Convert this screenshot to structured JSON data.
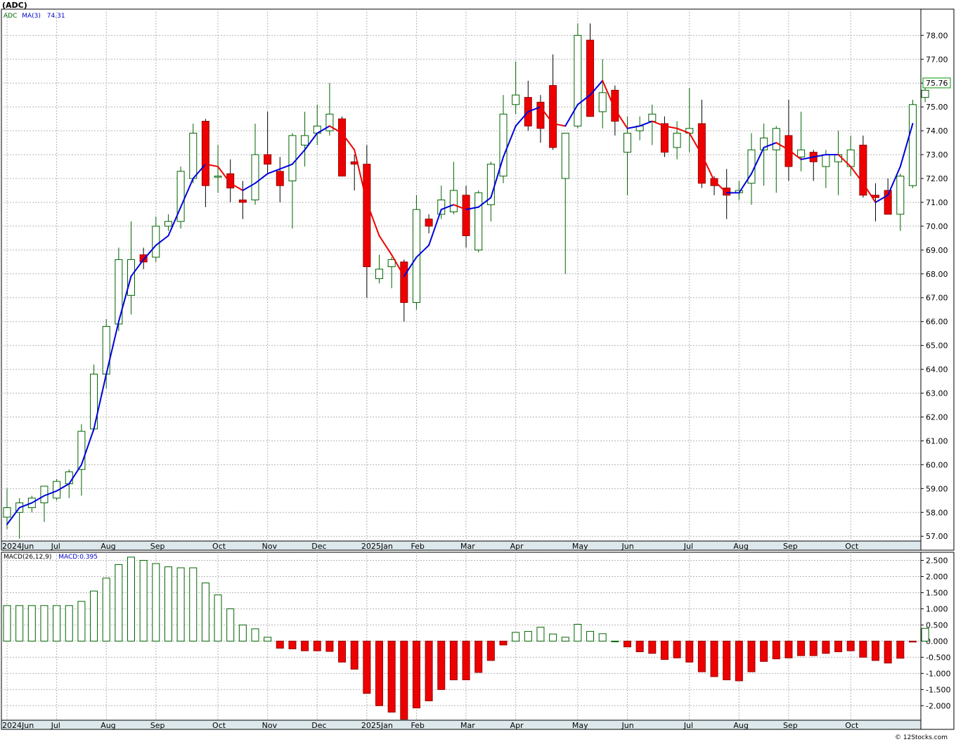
{
  "chart_data": [
    {
      "type": "candlestick",
      "title": "(ADC)",
      "ticker": "ADC",
      "ma_label": "MA(3)",
      "ma_value": "74.31",
      "last_price_label": "75.76",
      "ylim": [
        56.8,
        79.1
      ],
      "ytick_labels": [
        "57.00",
        "58.00",
        "59.00",
        "60.00",
        "61.00",
        "62.00",
        "63.00",
        "64.00",
        "65.00",
        "66.00",
        "67.00",
        "68.00",
        "69.00",
        "70.00",
        "71.00",
        "72.00",
        "73.00",
        "74.00",
        "75.00",
        "76.00",
        "77.00",
        "78.00"
      ],
      "xtick_labels": [
        {
          "week": 0,
          "label": "2024Jun"
        },
        {
          "week": 4,
          "label": "Jul"
        },
        {
          "week": 8,
          "label": "Aug"
        },
        {
          "week": 12,
          "label": "Sep"
        },
        {
          "week": 17,
          "label": "Oct"
        },
        {
          "week": 21,
          "label": "Nov"
        },
        {
          "week": 25,
          "label": "Dec"
        },
        {
          "week": 29,
          "label": "2025Jan"
        },
        {
          "week": 33,
          "label": "Feb"
        },
        {
          "week": 37,
          "label": "Mar"
        },
        {
          "week": 41,
          "label": "Apr"
        },
        {
          "week": 46,
          "label": "May"
        },
        {
          "week": 50,
          "label": "Jun"
        },
        {
          "week": 55,
          "label": "Jul"
        },
        {
          "week": 59,
          "label": "Aug"
        },
        {
          "week": 63,
          "label": "Sep"
        },
        {
          "week": 68,
          "label": "Oct"
        }
      ],
      "candles": [
        {
          "o": 57.8,
          "h": 59.0,
          "l": 57.3,
          "c": 58.2
        },
        {
          "o": 58.0,
          "h": 58.6,
          "l": 56.9,
          "c": 58.4
        },
        {
          "o": 58.2,
          "h": 58.7,
          "l": 58.0,
          "c": 58.6
        },
        {
          "o": 58.4,
          "h": 58.9,
          "l": 57.6,
          "c": 59.1
        },
        {
          "o": 58.6,
          "h": 59.4,
          "l": 58.5,
          "c": 59.3
        },
        {
          "o": 59.2,
          "h": 59.8,
          "l": 58.6,
          "c": 59.7
        },
        {
          "o": 59.8,
          "h": 61.7,
          "l": 58.7,
          "c": 61.4
        },
        {
          "o": 61.5,
          "h": 64.2,
          "l": 61.4,
          "c": 63.8
        },
        {
          "o": 63.8,
          "h": 66.1,
          "l": 63.2,
          "c": 65.8
        },
        {
          "o": 65.9,
          "h": 69.1,
          "l": 65.6,
          "c": 68.6
        },
        {
          "o": 67.1,
          "h": 70.2,
          "l": 66.3,
          "c": 68.6
        },
        {
          "o": 68.8,
          "h": 69.1,
          "l": 68.2,
          "c": 68.5
        },
        {
          "o": 68.7,
          "h": 70.4,
          "l": 68.5,
          "c": 70.0
        },
        {
          "o": 70.0,
          "h": 70.5,
          "l": 69.8,
          "c": 70.2
        },
        {
          "o": 70.2,
          "h": 72.5,
          "l": 69.9,
          "c": 72.3
        },
        {
          "o": 72.0,
          "h": 74.3,
          "l": 71.8,
          "c": 73.9
        },
        {
          "o": 74.4,
          "h": 74.5,
          "l": 70.8,
          "c": 71.7
        },
        {
          "o": 72.1,
          "h": 73.4,
          "l": 71.4,
          "c": 72.1
        },
        {
          "o": 72.2,
          "h": 72.8,
          "l": 71.0,
          "c": 71.6
        },
        {
          "o": 71.1,
          "h": 71.9,
          "l": 70.3,
          "c": 71.0
        },
        {
          "o": 71.1,
          "h": 74.3,
          "l": 70.9,
          "c": 73.0
        },
        {
          "o": 73.0,
          "h": 74.8,
          "l": 72.2,
          "c": 72.6
        },
        {
          "o": 72.3,
          "h": 72.9,
          "l": 71.0,
          "c": 71.7
        },
        {
          "o": 71.9,
          "h": 73.9,
          "l": 69.9,
          "c": 73.8
        },
        {
          "o": 73.4,
          "h": 74.8,
          "l": 72.5,
          "c": 73.8
        },
        {
          "o": 73.9,
          "h": 75.1,
          "l": 73.4,
          "c": 74.2
        },
        {
          "o": 74.0,
          "h": 76.0,
          "l": 73.8,
          "c": 74.7
        },
        {
          "o": 74.5,
          "h": 74.6,
          "l": 72.3,
          "c": 72.1
        },
        {
          "o": 72.7,
          "h": 73.0,
          "l": 71.5,
          "c": 72.6
        },
        {
          "o": 72.6,
          "h": 73.4,
          "l": 67.0,
          "c": 68.3
        },
        {
          "o": 67.8,
          "h": 68.8,
          "l": 67.6,
          "c": 68.2
        },
        {
          "o": 68.3,
          "h": 68.7,
          "l": 67.4,
          "c": 68.6
        },
        {
          "o": 68.5,
          "h": 68.6,
          "l": 66.0,
          "c": 66.8
        },
        {
          "o": 66.8,
          "h": 71.3,
          "l": 66.5,
          "c": 70.7
        },
        {
          "o": 70.3,
          "h": 70.5,
          "l": 69.7,
          "c": 70.0
        },
        {
          "o": 70.5,
          "h": 71.7,
          "l": 70.3,
          "c": 71.1
        },
        {
          "o": 70.6,
          "h": 72.7,
          "l": 70.5,
          "c": 71.5
        },
        {
          "o": 71.3,
          "h": 71.7,
          "l": 69.1,
          "c": 69.6
        },
        {
          "o": 69.0,
          "h": 71.5,
          "l": 68.9,
          "c": 71.4
        },
        {
          "o": 70.9,
          "h": 72.7,
          "l": 70.2,
          "c": 72.6
        },
        {
          "o": 72.1,
          "h": 75.5,
          "l": 71.8,
          "c": 74.7
        },
        {
          "o": 75.1,
          "h": 76.9,
          "l": 74.7,
          "c": 75.5
        },
        {
          "o": 75.4,
          "h": 76.1,
          "l": 74.0,
          "c": 74.2
        },
        {
          "o": 75.2,
          "h": 75.5,
          "l": 73.5,
          "c": 74.1
        },
        {
          "o": 75.9,
          "h": 77.2,
          "l": 73.2,
          "c": 73.3
        },
        {
          "o": 72.0,
          "h": 73.9,
          "l": 68.0,
          "c": 73.9
        },
        {
          "o": 74.2,
          "h": 78.5,
          "l": 74.1,
          "c": 78.0
        },
        {
          "o": 77.8,
          "h": 78.5,
          "l": 74.6,
          "c": 74.6
        },
        {
          "o": 74.8,
          "h": 77.0,
          "l": 74.1,
          "c": 75.6
        },
        {
          "o": 75.7,
          "h": 75.9,
          "l": 73.8,
          "c": 74.4
        },
        {
          "o": 73.1,
          "h": 74.6,
          "l": 71.3,
          "c": 73.9
        },
        {
          "o": 74.0,
          "h": 74.6,
          "l": 73.6,
          "c": 74.2
        },
        {
          "o": 74.4,
          "h": 75.1,
          "l": 73.4,
          "c": 74.7
        },
        {
          "o": 74.3,
          "h": 74.6,
          "l": 72.9,
          "c": 73.1
        },
        {
          "o": 73.3,
          "h": 74.4,
          "l": 72.8,
          "c": 73.9
        },
        {
          "o": 73.9,
          "h": 75.8,
          "l": 73.1,
          "c": 74.1
        },
        {
          "o": 74.3,
          "h": 75.3,
          "l": 71.6,
          "c": 71.8
        },
        {
          "o": 72.0,
          "h": 72.1,
          "l": 71.3,
          "c": 71.7
        },
        {
          "o": 71.6,
          "h": 72.4,
          "l": 70.3,
          "c": 71.3
        },
        {
          "o": 71.4,
          "h": 71.9,
          "l": 71.1,
          "c": 71.5
        },
        {
          "o": 71.8,
          "h": 73.9,
          "l": 70.9,
          "c": 73.2
        },
        {
          "o": 73.2,
          "h": 74.3,
          "l": 71.7,
          "c": 73.7
        },
        {
          "o": 73.2,
          "h": 74.2,
          "l": 71.4,
          "c": 74.1
        },
        {
          "o": 73.8,
          "h": 75.3,
          "l": 71.9,
          "c": 72.5
        },
        {
          "o": 72.9,
          "h": 74.8,
          "l": 72.3,
          "c": 73.2
        },
        {
          "o": 73.1,
          "h": 73.2,
          "l": 71.9,
          "c": 72.7
        },
        {
          "o": 72.5,
          "h": 73.2,
          "l": 71.6,
          "c": 73.0
        },
        {
          "o": 72.7,
          "h": 74.0,
          "l": 71.3,
          "c": 73.0
        },
        {
          "o": 72.5,
          "h": 73.8,
          "l": 72.1,
          "c": 73.2
        },
        {
          "o": 73.4,
          "h": 73.8,
          "l": 71.2,
          "c": 71.3
        },
        {
          "o": 71.3,
          "h": 71.8,
          "l": 70.2,
          "c": 71.2
        },
        {
          "o": 71.5,
          "h": 72.0,
          "l": 70.5,
          "c": 70.5
        },
        {
          "o": 70.5,
          "h": 72.2,
          "l": 69.8,
          "c": 72.1
        },
        {
          "o": 71.7,
          "h": 75.3,
          "l": 71.6,
          "c": 75.1
        },
        {
          "o": 75.4,
          "h": 76.0,
          "l": 75.2,
          "c": 75.7
        }
      ],
      "ma": [
        {
          "week": 0,
          "v": 57.5
        },
        {
          "week": 1,
          "v": 58.2
        },
        {
          "week": 2,
          "v": 58.4
        },
        {
          "week": 3,
          "v": 58.7
        },
        {
          "week": 4,
          "v": 58.9
        },
        {
          "week": 5,
          "v": 59.2
        },
        {
          "week": 6,
          "v": 60.0
        },
        {
          "week": 7,
          "v": 61.5
        },
        {
          "week": 8,
          "v": 63.8
        },
        {
          "week": 9,
          "v": 66.0
        },
        {
          "week": 10,
          "v": 67.9
        },
        {
          "week": 11,
          "v": 68.6
        },
        {
          "week": 12,
          "v": 69.2
        },
        {
          "week": 13,
          "v": 69.6
        },
        {
          "week": 14,
          "v": 70.8
        },
        {
          "week": 15,
          "v": 72.0
        },
        {
          "week": 16,
          "v": 72.6
        },
        {
          "week": 17,
          "v": 72.5
        },
        {
          "week": 18,
          "v": 71.8
        },
        {
          "week": 19,
          "v": 71.5
        },
        {
          "week": 20,
          "v": 71.8
        },
        {
          "week": 21,
          "v": 72.2
        },
        {
          "week": 22,
          "v": 72.4
        },
        {
          "week": 23,
          "v": 72.6
        },
        {
          "week": 24,
          "v": 73.2
        },
        {
          "week": 25,
          "v": 73.9
        },
        {
          "week": 26,
          "v": 74.2
        },
        {
          "week": 27,
          "v": 73.9
        },
        {
          "week": 28,
          "v": 73.2
        },
        {
          "week": 29,
          "v": 71.0
        },
        {
          "week": 30,
          "v": 69.6
        },
        {
          "week": 31,
          "v": 68.8
        },
        {
          "week": 32,
          "v": 67.9
        },
        {
          "week": 33,
          "v": 68.7
        },
        {
          "week": 34,
          "v": 69.2
        },
        {
          "week": 35,
          "v": 70.7
        },
        {
          "week": 36,
          "v": 70.9
        },
        {
          "week": 37,
          "v": 70.7
        },
        {
          "week": 38,
          "v": 70.8
        },
        {
          "week": 39,
          "v": 71.2
        },
        {
          "week": 40,
          "v": 72.9
        },
        {
          "week": 41,
          "v": 74.2
        },
        {
          "week": 42,
          "v": 74.8
        },
        {
          "week": 43,
          "v": 75.0
        },
        {
          "week": 44,
          "v": 74.3
        },
        {
          "week": 45,
          "v": 74.2
        },
        {
          "week": 46,
          "v": 75.1
        },
        {
          "week": 47,
          "v": 75.5
        },
        {
          "week": 48,
          "v": 76.1
        },
        {
          "week": 49,
          "v": 74.9
        },
        {
          "week": 50,
          "v": 74.1
        },
        {
          "week": 51,
          "v": 74.2
        },
        {
          "week": 52,
          "v": 74.4
        },
        {
          "week": 53,
          "v": 74.2
        },
        {
          "week": 54,
          "v": 74.1
        },
        {
          "week": 55,
          "v": 73.9
        },
        {
          "week": 56,
          "v": 73.0
        },
        {
          "week": 57,
          "v": 71.9
        },
        {
          "week": 58,
          "v": 71.4
        },
        {
          "week": 59,
          "v": 71.4
        },
        {
          "week": 60,
          "v": 72.2
        },
        {
          "week": 61,
          "v": 73.3
        },
        {
          "week": 62,
          "v": 73.5
        },
        {
          "week": 63,
          "v": 73.2
        },
        {
          "week": 64,
          "v": 72.8
        },
        {
          "week": 65,
          "v": 72.9
        },
        {
          "week": 66,
          "v": 73.0
        },
        {
          "week": 67,
          "v": 73.0
        },
        {
          "week": 68,
          "v": 72.5
        },
        {
          "week": 69,
          "v": 71.8
        },
        {
          "week": 70,
          "v": 71.0
        },
        {
          "week": 71,
          "v": 71.3
        },
        {
          "week": 72,
          "v": 72.5
        },
        {
          "week": 73,
          "v": 74.3
        }
      ]
    },
    {
      "type": "bar",
      "label": "MACD(26,12,9)",
      "value_label": "MACD:0.395",
      "ylim": [
        -2.45,
        2.75
      ],
      "ytick_labels": [
        "2.500",
        "2.000",
        "1.500",
        "1.000",
        "0.500",
        "0.000",
        "-0.500",
        "-1.000",
        "-1.500",
        "-2.000"
      ],
      "values": [
        1.1,
        1.1,
        1.1,
        1.1,
        1.1,
        1.1,
        1.23,
        1.55,
        1.95,
        2.37,
        2.6,
        2.5,
        2.4,
        2.3,
        2.27,
        2.27,
        1.8,
        1.43,
        1.0,
        0.5,
        0.38,
        0.12,
        -0.22,
        -0.24,
        -0.3,
        -0.3,
        -0.32,
        -0.65,
        -0.87,
        -1.62,
        -2.0,
        -2.2,
        -2.42,
        -2.07,
        -1.85,
        -1.5,
        -1.2,
        -1.2,
        -0.97,
        -0.6,
        -0.12,
        0.27,
        0.3,
        0.43,
        0.22,
        0.12,
        0.52,
        0.3,
        0.23,
        0.0,
        -0.18,
        -0.33,
        -0.38,
        -0.57,
        -0.52,
        -0.65,
        -0.95,
        -1.1,
        -1.2,
        -1.23,
        -0.95,
        -0.63,
        -0.55,
        -0.52,
        -0.45,
        -0.45,
        -0.38,
        -0.33,
        -0.3,
        -0.5,
        -0.6,
        -0.68,
        -0.53,
        -0.03,
        0.395
      ]
    }
  ],
  "watermark": "© 12Stocks.com"
}
